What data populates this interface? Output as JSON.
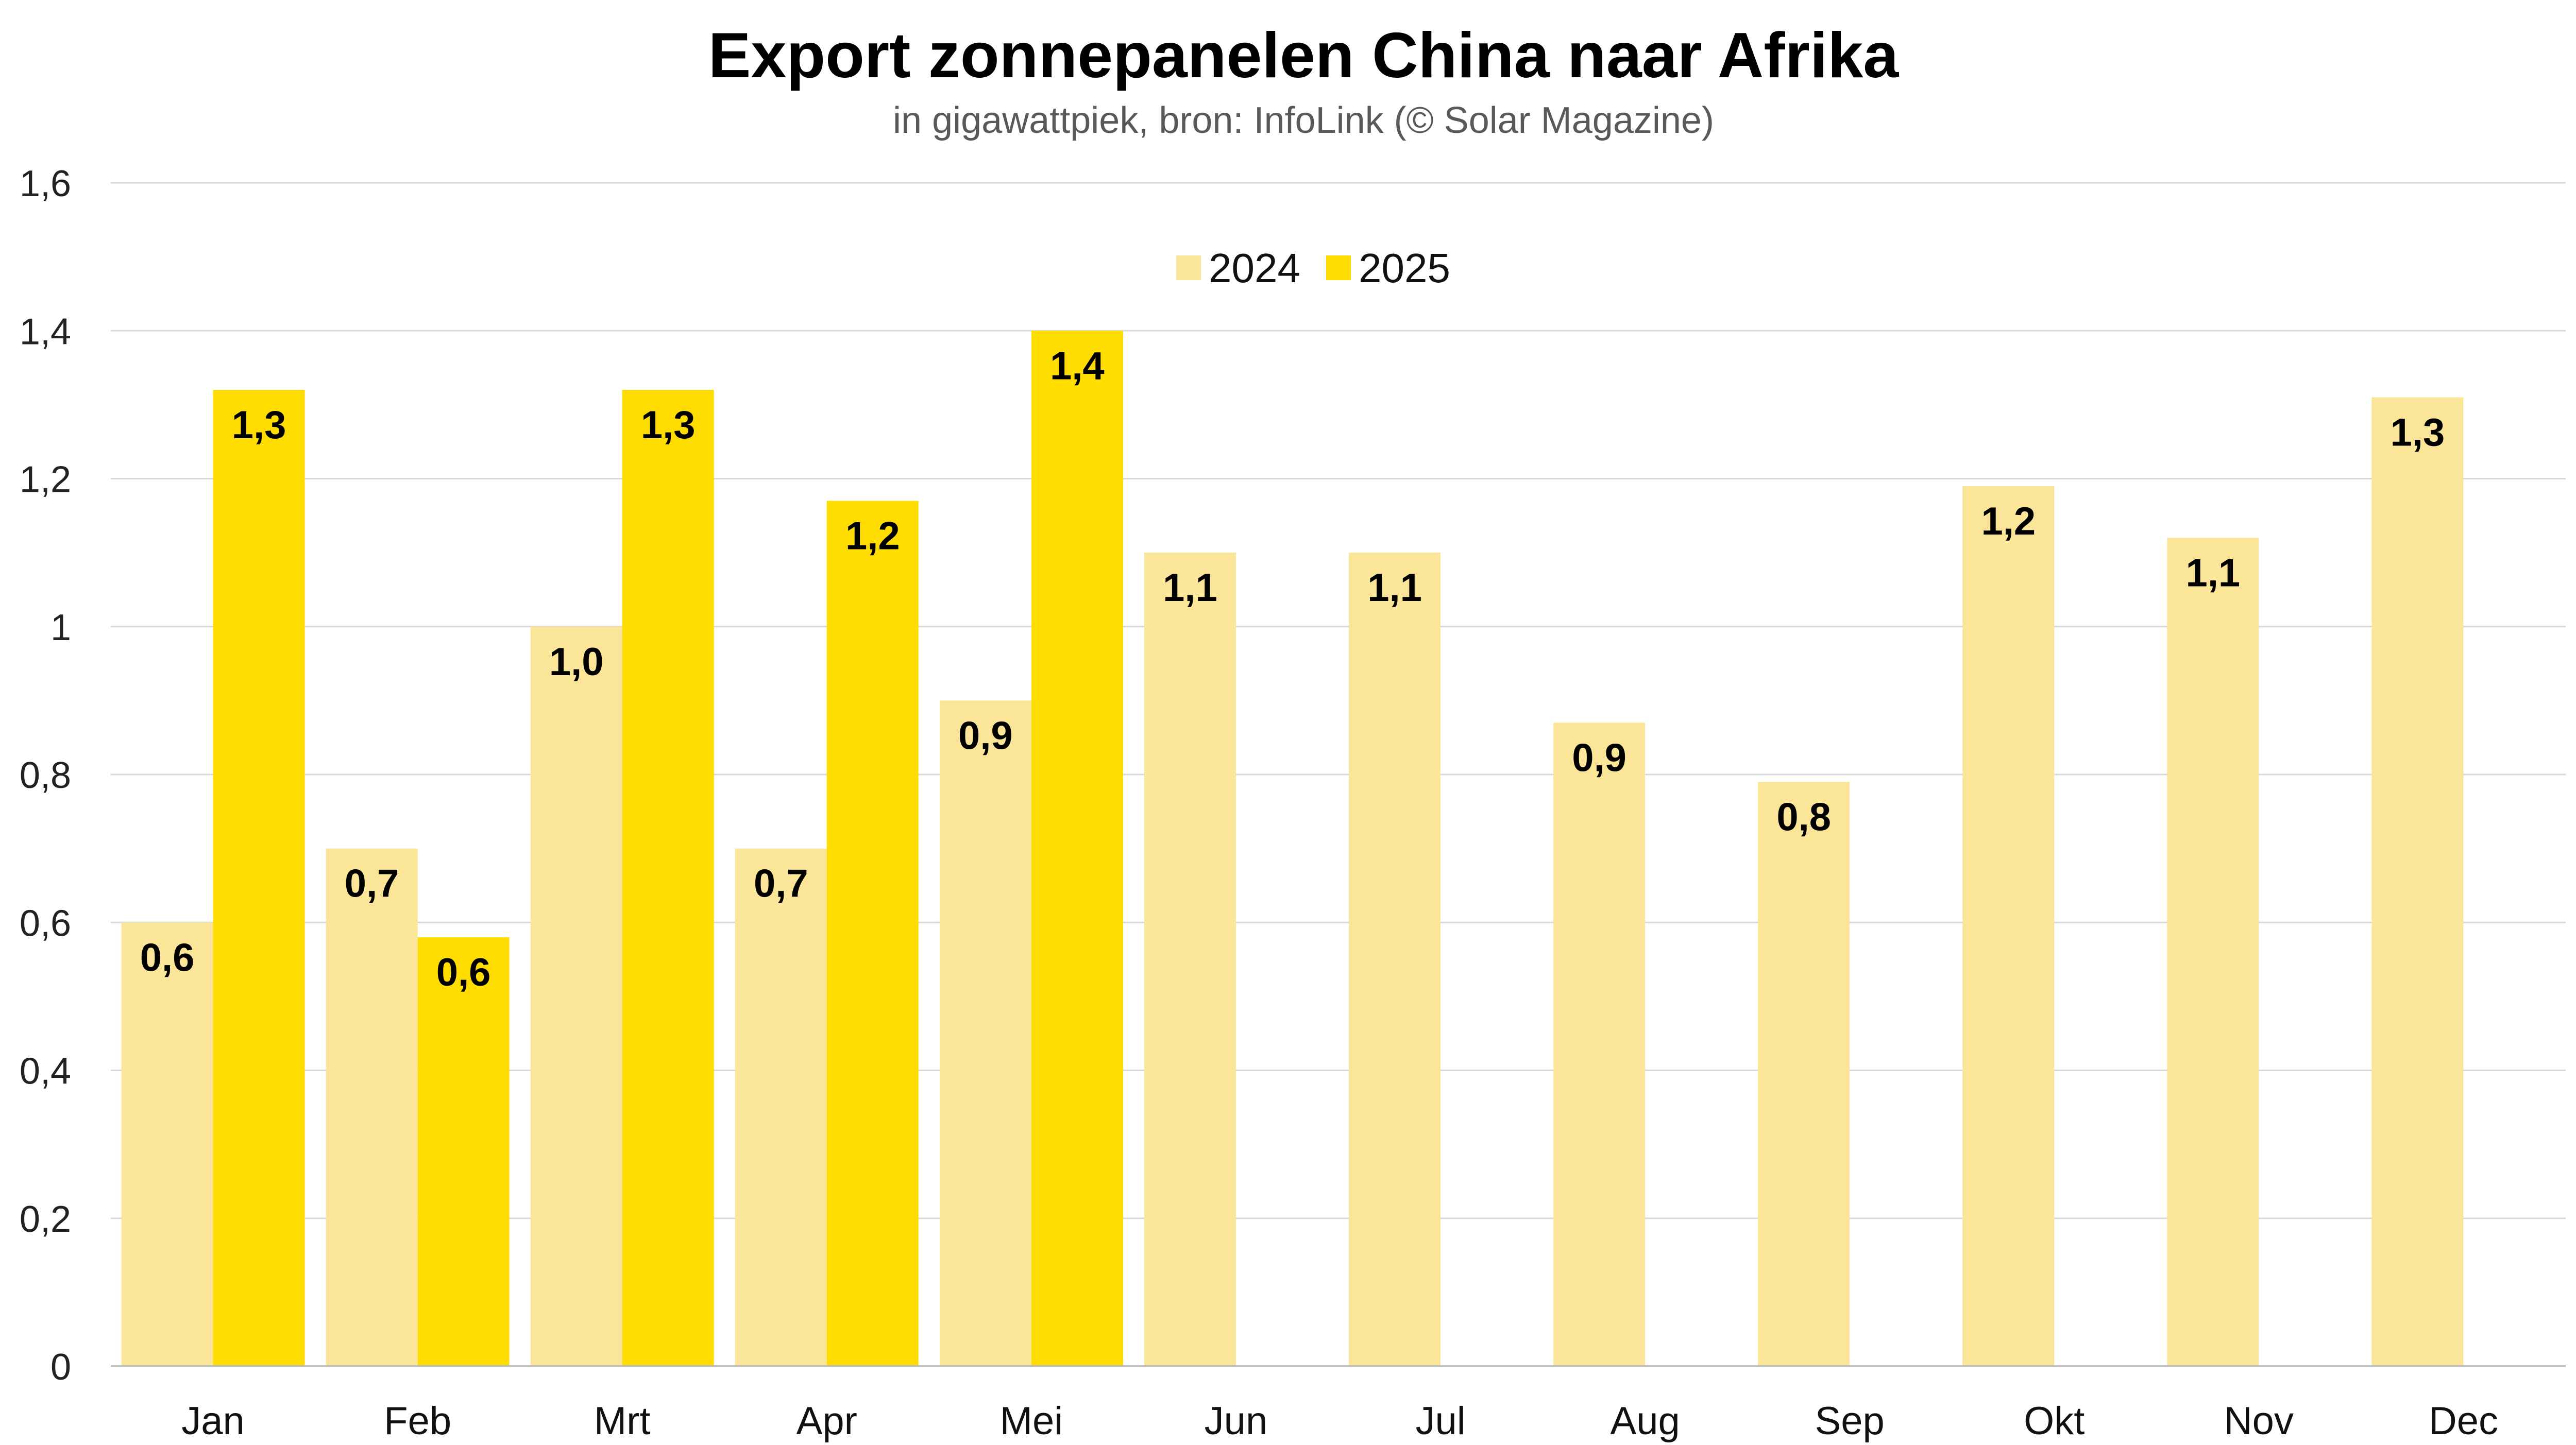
{
  "chart_data": {
    "type": "bar",
    "title": "Export zonnepanelen China naar Afrika",
    "subtitle": "in gigawattpiek, bron: InfoLink (© Solar Magazine)",
    "xlabel": "",
    "ylabel": "",
    "ylim": [
      0,
      1.6
    ],
    "yticks": [
      {
        "value": 0,
        "label": "0"
      },
      {
        "value": 0.2,
        "label": "0,2"
      },
      {
        "value": 0.4,
        "label": "0,4"
      },
      {
        "value": 0.6,
        "label": "0,6"
      },
      {
        "value": 0.8,
        "label": "0,8"
      },
      {
        "value": 1.0,
        "label": "1"
      },
      {
        "value": 1.2,
        "label": "1,2"
      },
      {
        "value": 1.4,
        "label": "1,4"
      },
      {
        "value": 1.6,
        "label": "1,6"
      }
    ],
    "grid": true,
    "legend_position": "top-center",
    "categories": [
      "Jan",
      "Feb",
      "Mrt",
      "Apr",
      "Mei",
      "Jun",
      "Jul",
      "Aug",
      "Sep",
      "Okt",
      "Nov",
      "Dec"
    ],
    "series": [
      {
        "name": "2024",
        "color": "#FBE599",
        "values": [
          0.6,
          0.7,
          1.0,
          0.7,
          0.9,
          1.1,
          1.1,
          0.87,
          0.79,
          1.19,
          1.12,
          1.31
        ],
        "labels": [
          "0,6",
          "0,7",
          "1,0",
          "0,7",
          "0,9",
          "1,1",
          "1,1",
          "0,9",
          "0,8",
          "1,2",
          "1,1",
          "1,3"
        ]
      },
      {
        "name": "2025",
        "color": "#FFDD00",
        "values": [
          1.32,
          0.58,
          1.32,
          1.17,
          1.4,
          null,
          null,
          null,
          null,
          null,
          null,
          null
        ],
        "labels": [
          "1,3",
          "0,6",
          "1,3",
          "1,2",
          "1,4",
          null,
          null,
          null,
          null,
          null,
          null,
          null
        ]
      }
    ]
  }
}
